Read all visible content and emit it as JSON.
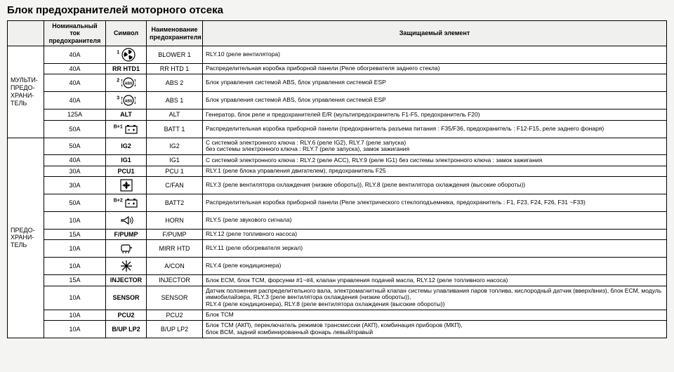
{
  "title": "Блок предохранителей моторного отсека",
  "columns": {
    "group_blank": "",
    "rating": "Номинальный ток предохранителя",
    "symbol": "Символ",
    "name": "Наименование предохранителя",
    "protected": "Защищаемый элемент"
  },
  "group1_label": "МУЛЬТИ-\nПРЕДО-\nХРАНИ-\nТЕЛЬ",
  "group2_label": "ПРЕДО-\nХРАНИ-\nТЕЛЬ",
  "group1": [
    {
      "rating": "40A",
      "sup": "1",
      "sym": "fan",
      "symlabel": "",
      "name": "BLOWER 1",
      "prot": "RLY.10 (реле вентилятора)"
    },
    {
      "rating": "40A",
      "sup": "",
      "sym": "",
      "symlabel": "RR HTD1",
      "name": "RR HTD 1",
      "prot": "Распределительная коробка приборной панели (Реле обогревателя заднего стекла)"
    },
    {
      "rating": "40A",
      "sup": "2",
      "sym": "abs",
      "symlabel": "",
      "name": "ABS 2",
      "prot": "Блок управления системой ABS, блок управления системой ESP"
    },
    {
      "rating": "40A",
      "sup": "3",
      "sym": "abs",
      "symlabel": "",
      "name": "ABS 1",
      "prot": "Блок управления системой ABS, блок управления системой ESP"
    },
    {
      "rating": "125A",
      "sup": "",
      "sym": "",
      "symlabel": "ALT",
      "name": "ALT",
      "prot": "Генератор, блок реле и предохранителей E/R (мультипредохранитель F1-F5, предохранитель F20)"
    },
    {
      "rating": "50A",
      "sup": "B+1",
      "sym": "batt",
      "symlabel": "",
      "name": "BATT 1",
      "prot": "Распределительная коробка приборной панели (предохранитель разъема питания : F35/F36, предохранитель : F12-F15, реле заднего фонаря)"
    }
  ],
  "group2": [
    {
      "rating": "50A",
      "sup": "",
      "sym": "",
      "symlabel": "IG2",
      "name": "IG2",
      "prot": "С системой электронного ключа : RLY.6 (реле IG2), RLY.7 (реле запуска)\nбез системы электронного ключа : RLY.7 (реле запуска), замок зажигания"
    },
    {
      "rating": "40A",
      "sup": "",
      "sym": "",
      "symlabel": "IG1",
      "name": "IG1",
      "prot": "С системой электронного ключа : RLY.2 (реле ACC), RLY.9 (реле IG1) без системы электронного ключа : замок зажигания"
    },
    {
      "rating": "30A",
      "sup": "",
      "sym": "",
      "symlabel": "PCU1",
      "name": "PCU 1",
      "prot": "RLY.1 (реле блока управления двигателем), предохранитель F25"
    },
    {
      "rating": "30A",
      "sup": "",
      "sym": "fan2",
      "symlabel": "",
      "name": "C/FAN",
      "prot": "RLY.3 (реле вентилятора охлаждения (низкие обороты)), RLY.8 (реле вентилятора охлаждения (высокие обороты))"
    },
    {
      "rating": "50A",
      "sup": "B+2",
      "sym": "batt",
      "symlabel": "",
      "name": "BATT2",
      "prot": "Распределительная коробка приборной панели (Реле электрического стеклоподъемника, предохранитель : F1, F23, F24, F26, F31 ~F33)"
    },
    {
      "rating": "10A",
      "sup": "",
      "sym": "horn",
      "symlabel": "",
      "name": "HORN",
      "prot": "RLY.5 (реле звукового сигнала)"
    },
    {
      "rating": "15A",
      "sup": "",
      "sym": "",
      "symlabel": "F/PUMP",
      "name": "F/PUMP",
      "prot": "RLY.12 (реле топливного насоса)"
    },
    {
      "rating": "10A",
      "sup": "",
      "sym": "mirr",
      "symlabel": "",
      "name": "MIRR HTD",
      "prot": "RLY.11 (реле обогревателя зеркал)"
    },
    {
      "rating": "10A",
      "sup": "",
      "sym": "snow",
      "symlabel": "",
      "name": "A/CON",
      "prot": "RLY.4 (реле кондиционера)"
    },
    {
      "rating": "15A",
      "sup": "",
      "sym": "",
      "symlabel": "INJECTOR",
      "name": "INJECTOR",
      "prot": "Блок ECM, блок TCM, форсунки #1~#4, клапан управления подачей масла, RLY.12 (реле топливного насоса)"
    },
    {
      "rating": "10A",
      "sup": "",
      "sym": "",
      "symlabel": "SENSOR",
      "name": "SENSOR",
      "prot": "Датчик положения распределительного вала, электромагнитный клапан системы улавливания паров топлива, кислородный датчик (вверх/вниз), блок ECM, модуль иммобилайзера, RLY.3 (реле вентилятора охлаждения (низкие обороты)),\nRLY.4 (реле кондиционера), RLY.8 (реле вентилятора охлаждения (высокие обороты))"
    },
    {
      "rating": "10A",
      "sup": "",
      "sym": "",
      "symlabel": "PCU2",
      "name": "PCU2",
      "prot": "Блок TCM"
    },
    {
      "rating": "10A",
      "sup": "",
      "sym": "",
      "symlabel": "B/UP LP2",
      "name": "B/UP LP2",
      "prot": "Блок TCM (АКП), переключатель режимов трансмиссии (АКП), комбинация приборов (МКП),\nблок BCM, задний комбинированный фонарь левый/правый"
    }
  ],
  "icons": {
    "fan": "fan",
    "abs": "abs",
    "batt": "batt",
    "fan2": "fan2",
    "horn": "horn",
    "mirr": "mirr",
    "snow": "snow"
  }
}
